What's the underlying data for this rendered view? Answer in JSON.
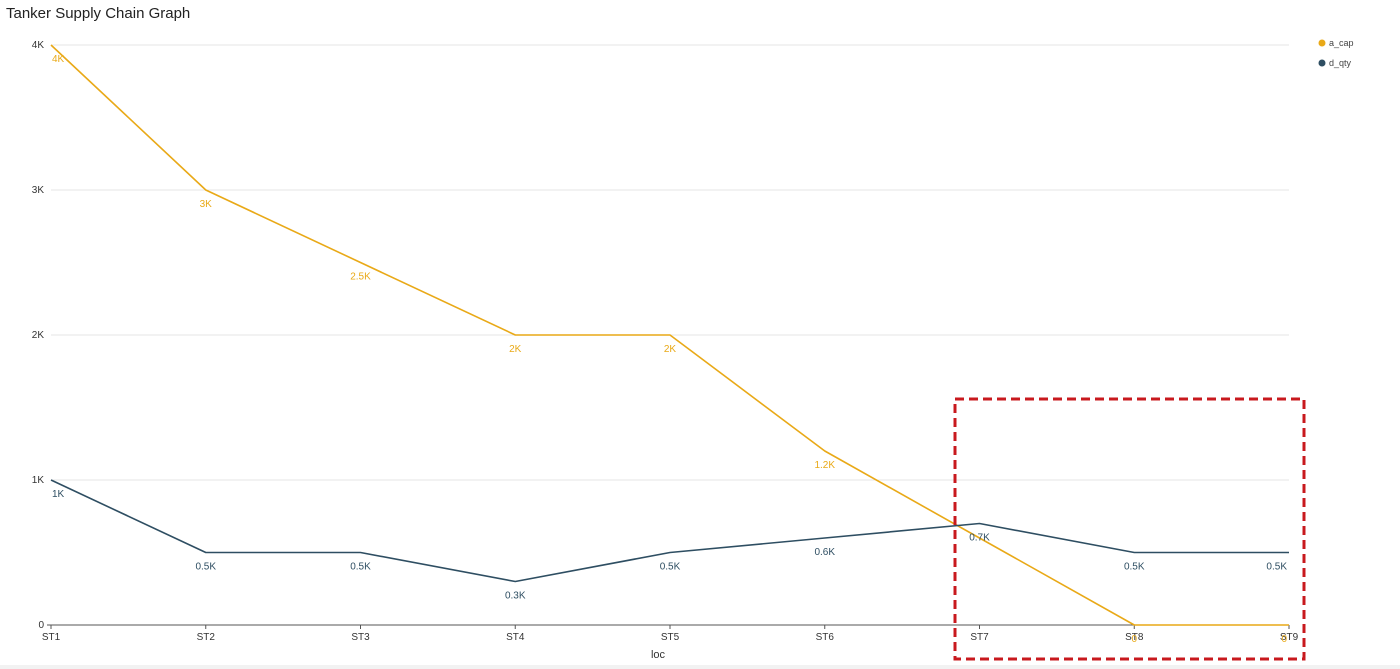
{
  "chart_data": {
    "type": "line",
    "title": "Tanker Supply Chain Graph",
    "xlabel": "loc",
    "ylabel": "",
    "categories": [
      "ST1",
      "ST2",
      "ST3",
      "ST4",
      "ST5",
      "ST6",
      "ST7",
      "ST8",
      "ST9"
    ],
    "ylim": [
      0,
      4000
    ],
    "yticks": [
      0,
      1000,
      2000,
      3000,
      4000
    ],
    "ytick_labels": [
      "0",
      "1K",
      "2K",
      "3K",
      "4K"
    ],
    "grid": true,
    "legend_position": "top-right",
    "series": [
      {
        "name": "a_cap",
        "color": "#E9A917",
        "values": [
          4000,
          3000,
          2500,
          2000,
          2000,
          1200,
          600,
          0,
          0
        ],
        "labels": [
          "4K",
          "3K",
          "2.5K",
          "2K",
          "2K",
          "1.2K",
          "",
          "0",
          "0"
        ]
      },
      {
        "name": "d_qty",
        "color": "#2E4E62",
        "values": [
          1000,
          500,
          500,
          300,
          500,
          600,
          700,
          500,
          500
        ],
        "labels": [
          "1K",
          "0.5K",
          "0.5K",
          "0.3K",
          "0.5K",
          "0.6K",
          "0.7K",
          "0.5K",
          "0.5K"
        ]
      }
    ],
    "annotation": {
      "type": "highlight-box",
      "color": "#C8191E",
      "style": "dashed",
      "x_range": [
        "ST7",
        "ST9"
      ]
    }
  }
}
